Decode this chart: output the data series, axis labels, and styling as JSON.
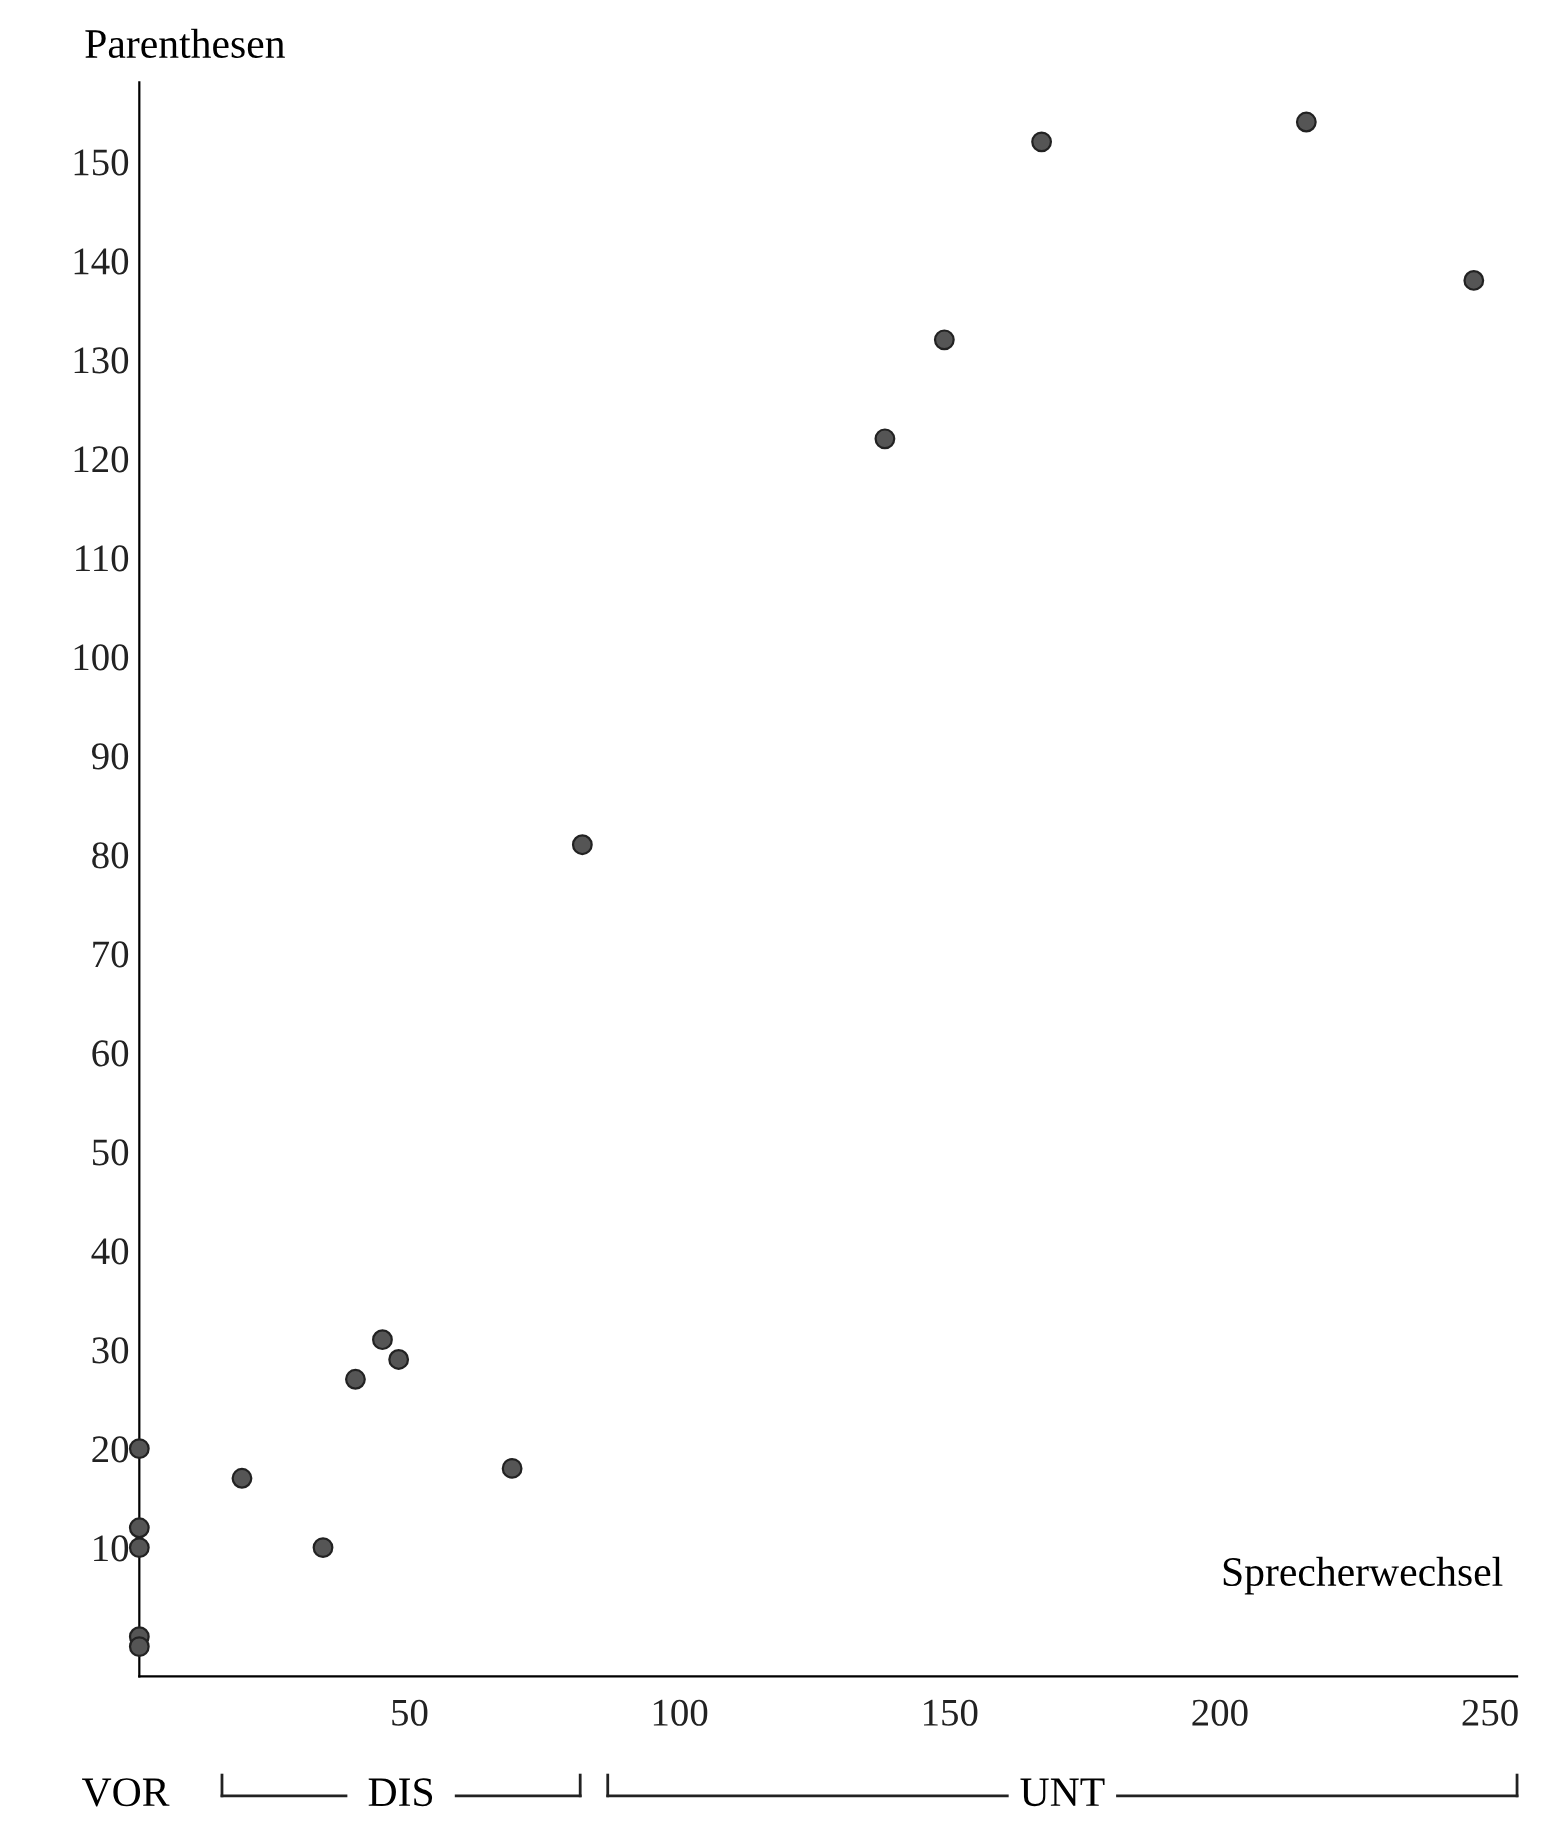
{
  "chart_data": {
    "type": "scatter",
    "xlabel": "Sprecherwechsel",
    "ylabel": "Parenthesen",
    "x": [
      0,
      0,
      0,
      0,
      0,
      19,
      34,
      40,
      45,
      48,
      69,
      82,
      138,
      149,
      167,
      216,
      247
    ],
    "values": [
      20,
      12,
      10,
      1,
      0,
      17,
      10,
      27,
      31,
      29,
      18,
      81,
      122,
      132,
      152,
      154,
      138
    ],
    "color": "#555555",
    "marker": "circle",
    "xlim": [
      0,
      255
    ],
    "ylim": [
      -3,
      158
    ],
    "xticks": [
      50,
      100,
      150,
      200,
      250
    ],
    "yticks": [
      10,
      20,
      30,
      40,
      50,
      60,
      70,
      80,
      90,
      100,
      110,
      120,
      130,
      140,
      150
    ],
    "grid": false,
    "legend": false,
    "annotations": [
      "VOR",
      "DIS",
      "UNT"
    ]
  }
}
